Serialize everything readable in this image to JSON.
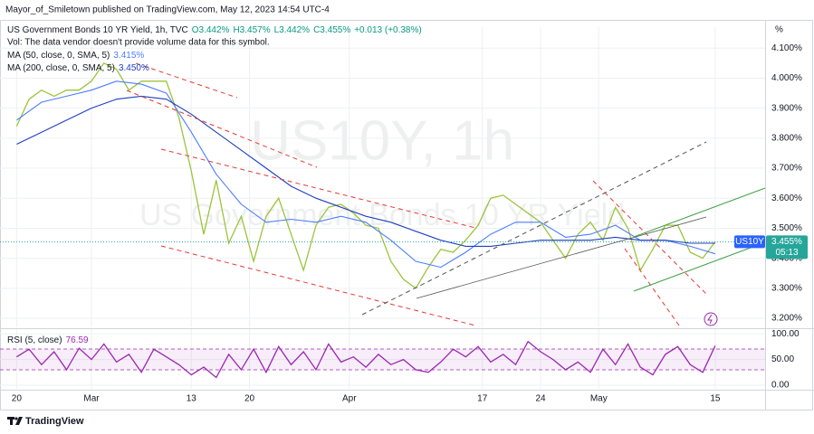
{
  "header": {
    "publisher": "Mayor_of_Smiletown published on TradingView.com, May 12, 2023 14:54 UTC-4"
  },
  "footer": {
    "brand": "TradingView"
  },
  "chart_data": [
    {
      "type": "line",
      "title": "US Government Bonds 10 YR Yield, 1h, TVC",
      "quote": [
        "O3.442%",
        "H3.457%",
        "L3.442%",
        "C3.455%",
        "+0.013 (+0.38%)"
      ],
      "note": "Vol: The data vendor doesn't provide volume data for this symbol.",
      "watermark": [
        "US10Y, 1h",
        "US Government Bonds 10 YR Yield"
      ],
      "ylabel": "%",
      "symbol_tag": "US10Y",
      "price_tag": "3.455%",
      "countdown": "05:13",
      "xlim": [
        -2,
        90
      ],
      "ylim": [
        3.17,
        4.17
      ],
      "yticks": [
        {
          "value": 3.2,
          "label": "3.200%"
        },
        {
          "value": 3.3,
          "label": "3.300%"
        },
        {
          "value": 3.4,
          "label": "3.400%"
        },
        {
          "value": 3.5,
          "label": "3.500%"
        },
        {
          "value": 3.6,
          "label": "3.600%"
        },
        {
          "value": 3.7,
          "label": "3.700%"
        },
        {
          "value": 3.8,
          "label": "3.800%"
        },
        {
          "value": 3.9,
          "label": "3.900%"
        },
        {
          "value": 4.0,
          "label": "4.000%"
        },
        {
          "value": 4.1,
          "label": "4.100%"
        }
      ],
      "grid": true,
      "x": [
        0,
        1.5,
        3,
        4.5,
        6,
        7.5,
        9,
        10.5,
        12,
        13.5,
        15,
        16.5,
        18,
        19.5,
        21,
        22.5,
        24,
        25.5,
        27,
        28.5,
        30,
        31.5,
        33,
        34.5,
        36,
        37.5,
        39,
        40.5,
        42,
        43.5,
        45,
        46.5,
        48,
        49.5,
        51,
        52.5,
        54,
        55.5,
        57,
        58.5,
        60,
        61.5,
        63,
        64.5,
        66,
        67.5,
        69,
        70.5,
        72,
        73.5,
        75,
        76.5,
        78,
        79.5,
        81,
        82.5,
        84
      ],
      "series": [
        {
          "color": "#9cc43a",
          "values": [
            3.84,
            3.93,
            3.96,
            3.94,
            3.96,
            3.96,
            3.99,
            4.05,
            4.03,
            3.96,
            3.99,
            3.99,
            3.99,
            3.87,
            3.69,
            3.48,
            3.66,
            3.45,
            3.54,
            3.39,
            3.54,
            3.6,
            3.48,
            3.36,
            3.51,
            3.57,
            3.58,
            3.55,
            3.51,
            3.5,
            3.39,
            3.33,
            3.3,
            3.37,
            3.43,
            3.42,
            3.46,
            3.51,
            3.6,
            3.61,
            3.58,
            3.55,
            3.52,
            3.46,
            3.4,
            3.48,
            3.52,
            3.46,
            3.57,
            3.5,
            3.36,
            3.43,
            3.51,
            3.51,
            3.42,
            3.4,
            3.455
          ]
        },
        {
          "name": "MA (50, close, 0, SMA, 5)",
          "last_label": "3.415%",
          "color": "#4d7dff",
          "x": [
            0,
            3,
            6,
            9,
            12,
            15,
            18,
            21,
            24,
            27,
            30,
            33,
            36,
            39,
            42,
            45,
            48,
            51,
            54,
            57,
            60,
            63,
            66,
            69,
            72,
            75,
            78,
            81,
            84
          ],
          "values": [
            3.86,
            3.92,
            3.94,
            3.96,
            3.99,
            3.98,
            3.95,
            3.82,
            3.68,
            3.58,
            3.52,
            3.53,
            3.52,
            3.54,
            3.52,
            3.46,
            3.39,
            3.37,
            3.42,
            3.48,
            3.52,
            3.52,
            3.47,
            3.48,
            3.51,
            3.46,
            3.46,
            3.44,
            3.415
          ]
        },
        {
          "name": "MA (200, close, 0, SMA, 5)",
          "last_label": "3.450%",
          "color": "#1f3fbf",
          "x": [
            0,
            3,
            6,
            9,
            12,
            15,
            18,
            21,
            24,
            27,
            30,
            33,
            36,
            39,
            42,
            45,
            48,
            51,
            54,
            57,
            60,
            63,
            66,
            69,
            72,
            75,
            78,
            81,
            84
          ],
          "values": [
            3.78,
            3.82,
            3.86,
            3.9,
            3.93,
            3.94,
            3.93,
            3.88,
            3.82,
            3.76,
            3.7,
            3.64,
            3.6,
            3.57,
            3.54,
            3.52,
            3.49,
            3.46,
            3.44,
            3.44,
            3.45,
            3.46,
            3.46,
            3.46,
            3.47,
            3.46,
            3.46,
            3.45,
            3.45
          ]
        }
      ]
    },
    {
      "type": "line",
      "title": "RSI (5, close)",
      "last_label": "76.59",
      "xlim": [
        -2,
        90
      ],
      "ylim": [
        -7,
        109
      ],
      "yticks": [
        {
          "value": 0,
          "label": "0.00"
        },
        {
          "value": 50,
          "label": "50.00"
        },
        {
          "value": 100,
          "label": "100.00"
        }
      ],
      "xticks": [
        {
          "value": 0,
          "label": "20"
        },
        {
          "value": 9,
          "label": "Mar"
        },
        {
          "value": 21,
          "label": "13"
        },
        {
          "value": 28,
          "label": "20"
        },
        {
          "value": 40,
          "label": "Apr"
        },
        {
          "value": 56,
          "label": "17"
        },
        {
          "value": 63,
          "label": "24"
        },
        {
          "value": 70,
          "label": "May"
        },
        {
          "value": 84,
          "label": "15"
        }
      ],
      "x": [
        0,
        1.5,
        3,
        4.5,
        6,
        7.5,
        9,
        10.5,
        12,
        13.5,
        15,
        16.5,
        18,
        19.5,
        21,
        22.5,
        24,
        25.5,
        27,
        28.5,
        30,
        31.5,
        33,
        34.5,
        36,
        37.5,
        39,
        40.5,
        42,
        43.5,
        45,
        46.5,
        48,
        49.5,
        51,
        52.5,
        54,
        55.5,
        57,
        58.5,
        60,
        61.5,
        63,
        64.5,
        66,
        67.5,
        69,
        70.5,
        72,
        73.5,
        75,
        76.5,
        78,
        79.5,
        81,
        82.5,
        84
      ],
      "series": [
        {
          "color": "#9c27b0",
          "values": [
            55,
            70,
            40,
            65,
            30,
            72,
            50,
            80,
            45,
            60,
            25,
            70,
            55,
            40,
            20,
            35,
            15,
            60,
            30,
            70,
            25,
            75,
            40,
            65,
            30,
            80,
            45,
            55,
            35,
            60,
            40,
            50,
            30,
            25,
            45,
            70,
            55,
            75,
            45,
            60,
            40,
            85,
            65,
            50,
            30,
            45,
            25,
            70,
            40,
            80,
            35,
            20,
            60,
            75,
            40,
            25,
            76.59
          ]
        }
      ]
    }
  ]
}
